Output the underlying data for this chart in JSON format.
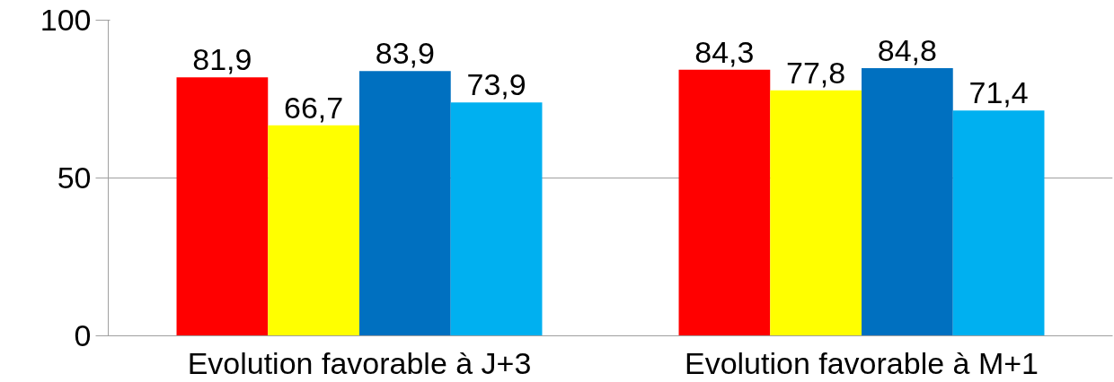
{
  "chart_data": {
    "type": "bar",
    "categories": [
      "Evolution favorable à J+3",
      "Evolution favorable à M+1"
    ],
    "series": [
      {
        "color": "#ff0000",
        "values": [
          81.9,
          84.3
        ],
        "value_labels": [
          "81,9",
          "84,3"
        ]
      },
      {
        "color": "#ffff00",
        "values": [
          66.7,
          77.8
        ],
        "value_labels": [
          "66,7",
          "77,8"
        ]
      },
      {
        "color": "#0070c0",
        "values": [
          83.9,
          84.8
        ],
        "value_labels": [
          "83,9",
          "84,8"
        ]
      },
      {
        "color": "#00b0f0",
        "values": [
          73.9,
          71.4
        ],
        "value_labels": [
          "73,9",
          "71,4"
        ]
      }
    ],
    "ylim": [
      0,
      100
    ],
    "yticks": [
      0,
      50,
      100
    ],
    "grid": "y"
  }
}
